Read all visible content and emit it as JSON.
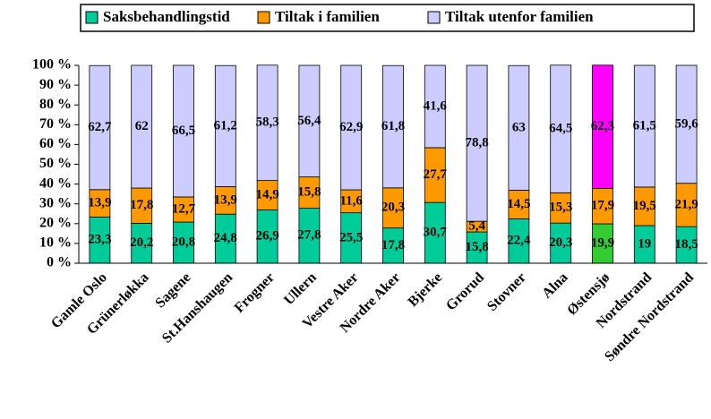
{
  "chart_data": {
    "type": "stacked_bar",
    "categories": [
      "Gamle Oslo",
      "Grünerløkka",
      "Sagene",
      "St.Hanshaugen",
      "Frogner",
      "Ullern",
      "Vestre Aker",
      "Nordre Aker",
      "Bjerke",
      "Grorud",
      "Stovner",
      "Alna",
      "Østensjø",
      "Nordstrand",
      "Søndre Nordstrand"
    ],
    "series": [
      {
        "name": "Saksbehandlingstid",
        "color": "#00cc99",
        "point_colors": {
          "12": "#33cc33"
        },
        "values": [
          23.3,
          20.2,
          20.8,
          24.8,
          26.9,
          27.8,
          25.5,
          17.8,
          30.7,
          15.8,
          22.4,
          20.3,
          19.9,
          19,
          18.5
        ],
        "value_labels": [
          "23,3",
          "20,2",
          "20,8",
          "24,8",
          "26,9",
          "27,8",
          "25,5",
          "17,8",
          "30,7",
          "15,8",
          "22,4",
          "20,3",
          "19,9",
          "19",
          "18,5"
        ]
      },
      {
        "name": "Tiltak i familien",
        "color": "#ff9900",
        "values": [
          13.9,
          17.8,
          12.7,
          13.9,
          14.9,
          15.8,
          11.6,
          20.3,
          27.7,
          5.4,
          14.5,
          15.3,
          17.9,
          19.5,
          21.9
        ],
        "value_labels": [
          "13,9",
          "17,8",
          "12,7",
          "13,9",
          "14,9",
          "15,8",
          "11,6",
          "20,3",
          "27,7",
          "5,4",
          "14,5",
          "15,3",
          "17,9",
          "19,5",
          "21,9"
        ]
      },
      {
        "name": "Tiltak utenfor familien",
        "color": "#ccccff",
        "point_colors": {
          "12": "#ff00ff"
        },
        "values": [
          62.7,
          62,
          66.5,
          61.2,
          58.3,
          56.4,
          62.9,
          61.8,
          41.6,
          78.8,
          63,
          64.5,
          62.3,
          61.5,
          59.6
        ],
        "value_labels": [
          "62,7",
          "62",
          "66,5",
          "61,2",
          "58,3",
          "56,4",
          "62,9",
          "61,8",
          "41,6",
          "78,8",
          "63",
          "64,5",
          "62,3",
          "61,5",
          "59,6"
        ]
      }
    ],
    "ylim": [
      0,
      100
    ],
    "yticks": [
      {
        "value": 0,
        "label": "0 %"
      },
      {
        "value": 10,
        "label": "10 %"
      },
      {
        "value": 20,
        "label": "20 %"
      },
      {
        "value": 30,
        "label": "30 %"
      },
      {
        "value": 40,
        "label": "40 %"
      },
      {
        "value": 50,
        "label": "50 %"
      },
      {
        "value": 60,
        "label": "60 %"
      },
      {
        "value": 70,
        "label": "70 %"
      },
      {
        "value": 80,
        "label": "80 %"
      },
      {
        "value": 90,
        "label": "90 %"
      },
      {
        "value": 100,
        "label": "100 %"
      }
    ],
    "grid": false,
    "legend": "top"
  }
}
